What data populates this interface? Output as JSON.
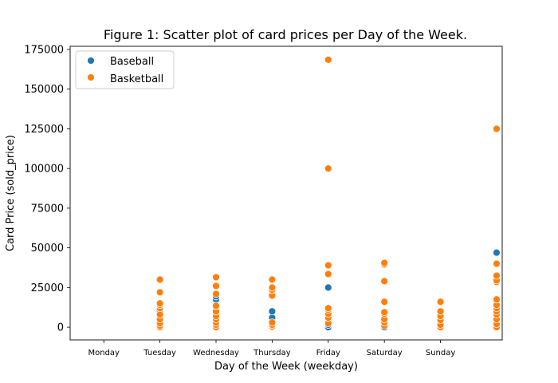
{
  "chart_data": {
    "type": "scatter",
    "title": "Figure 1: Scatter plot of card prices per Day of the Week.",
    "xlabel": "Day of the Week (weekday)",
    "ylabel": "Card Price (sold_price)",
    "categories": [
      "Monday",
      "Tuesday",
      "Wednesday",
      "Thursday",
      "Friday",
      "Saturday",
      "Sunday"
    ],
    "x_tick_positions": [
      0,
      1,
      2,
      3,
      4,
      5,
      6
    ],
    "xlim": [
      -0.6,
      7.1
    ],
    "ylim": [
      -8000,
      177000
    ],
    "y_ticks": [
      0,
      25000,
      50000,
      75000,
      100000,
      125000,
      150000,
      175000
    ],
    "grid": false,
    "legend_position": "top-left",
    "series": [
      {
        "name": "Baseball",
        "color": "#1f77b4",
        "points": [
          [
            1,
            500
          ],
          [
            1,
            1500
          ],
          [
            1,
            2500
          ],
          [
            1,
            4000
          ],
          [
            1,
            6000
          ],
          [
            1,
            8000
          ],
          [
            1,
            10500
          ],
          [
            1,
            12000
          ],
          [
            2,
            500
          ],
          [
            2,
            1500
          ],
          [
            2,
            3000
          ],
          [
            2,
            5000
          ],
          [
            2,
            8000
          ],
          [
            2,
            11000
          ],
          [
            2,
            14000
          ],
          [
            2,
            17500
          ],
          [
            2,
            19500
          ],
          [
            3,
            500
          ],
          [
            3,
            1500
          ],
          [
            3,
            3000
          ],
          [
            3,
            5500
          ],
          [
            3,
            6000
          ],
          [
            3,
            10000
          ],
          [
            4,
            0
          ],
          [
            4,
            1500
          ],
          [
            4,
            3500
          ],
          [
            4,
            5500
          ],
          [
            4,
            8000
          ],
          [
            4,
            25000
          ],
          [
            5,
            0
          ],
          [
            5,
            1500
          ],
          [
            5,
            2500
          ],
          [
            5,
            4000
          ],
          [
            5,
            5500
          ],
          [
            6,
            500
          ],
          [
            6,
            1000
          ],
          [
            6,
            2000
          ],
          [
            6,
            3500
          ],
          [
            6,
            5000
          ],
          [
            6,
            6000
          ],
          [
            7,
            3000
          ],
          [
            7,
            7000
          ],
          [
            7,
            9000
          ],
          [
            7,
            11000
          ],
          [
            7,
            47000
          ]
        ]
      },
      {
        "name": "Basketball",
        "color": "#ff7f0e",
        "points": [
          [
            1,
            0
          ],
          [
            1,
            1000
          ],
          [
            1,
            2500
          ],
          [
            1,
            5000
          ],
          [
            1,
            8000
          ],
          [
            1,
            12000
          ],
          [
            1,
            14000
          ],
          [
            1,
            15000
          ],
          [
            1,
            22000
          ],
          [
            1,
            30000
          ],
          [
            2,
            0
          ],
          [
            2,
            1500
          ],
          [
            2,
            3000
          ],
          [
            2,
            5000
          ],
          [
            2,
            7000
          ],
          [
            2,
            10000
          ],
          [
            2,
            13500
          ],
          [
            2,
            21000
          ],
          [
            2,
            26000
          ],
          [
            2,
            31500
          ],
          [
            3,
            0
          ],
          [
            3,
            500
          ],
          [
            3,
            1500
          ],
          [
            3,
            3000
          ],
          [
            3,
            19500
          ],
          [
            3,
            20000
          ],
          [
            3,
            23500
          ],
          [
            3,
            25000
          ],
          [
            3,
            30000
          ],
          [
            4,
            2500
          ],
          [
            4,
            6000
          ],
          [
            4,
            8500
          ],
          [
            4,
            11000
          ],
          [
            4,
            12000
          ],
          [
            4,
            33500
          ],
          [
            4,
            39000
          ],
          [
            4,
            100000
          ],
          [
            4,
            168500
          ],
          [
            5,
            1000
          ],
          [
            5,
            3000
          ],
          [
            5,
            5000
          ],
          [
            5,
            8500
          ],
          [
            5,
            9500
          ],
          [
            5,
            16000
          ],
          [
            5,
            29000
          ],
          [
            5,
            39500
          ],
          [
            5,
            40500
          ],
          [
            6,
            0
          ],
          [
            6,
            1500
          ],
          [
            6,
            4500
          ],
          [
            6,
            7000
          ],
          [
            6,
            10000
          ],
          [
            6,
            16000
          ],
          [
            7,
            0
          ],
          [
            7,
            2000
          ],
          [
            7,
            5000
          ],
          [
            7,
            8000
          ],
          [
            7,
            10000
          ],
          [
            7,
            12000
          ],
          [
            7,
            14000
          ],
          [
            7,
            17500
          ],
          [
            7,
            28500
          ],
          [
            7,
            29500
          ],
          [
            7,
            32500
          ],
          [
            7,
            40000
          ],
          [
            7,
            125000
          ]
        ]
      }
    ]
  }
}
